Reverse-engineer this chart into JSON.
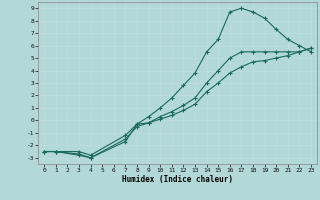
{
  "xlabel": "Humidex (Indice chaleur)",
  "bg_color": "#b2d8d8",
  "line_color": "#1a6b5a",
  "xlim": [
    -0.5,
    23.5
  ],
  "ylim": [
    -3.5,
    9.5
  ],
  "xticks": [
    0,
    1,
    2,
    3,
    4,
    5,
    6,
    7,
    8,
    9,
    10,
    11,
    12,
    13,
    14,
    15,
    16,
    17,
    18,
    19,
    20,
    21,
    22,
    23
  ],
  "yticks": [
    -3,
    -2,
    -1,
    0,
    1,
    2,
    3,
    4,
    5,
    6,
    7,
    8,
    9
  ],
  "series": [
    {
      "x": [
        0,
        1,
        3,
        4,
        7,
        8,
        9,
        10,
        11,
        12,
        13,
        14,
        15,
        16,
        17,
        18,
        19,
        20,
        21,
        22,
        23
      ],
      "y": [
        -2.5,
        -2.5,
        -2.8,
        -3.0,
        -1.7,
        -0.3,
        0.3,
        1.0,
        1.8,
        2.8,
        3.8,
        5.5,
        6.5,
        8.7,
        9.0,
        8.7,
        8.2,
        7.3,
        6.5,
        6.0,
        5.5
      ]
    },
    {
      "x": [
        0,
        1,
        3,
        4,
        7,
        8,
        9,
        10,
        11,
        12,
        13,
        14,
        15,
        16,
        17,
        18,
        19,
        20,
        21,
        22,
        23
      ],
      "y": [
        -2.5,
        -2.5,
        -2.7,
        -3.0,
        -1.5,
        -0.5,
        -0.2,
        0.3,
        0.7,
        1.2,
        1.8,
        3.0,
        4.0,
        5.0,
        5.5,
        5.5,
        5.5,
        5.5,
        5.5,
        5.5,
        5.8
      ]
    },
    {
      "x": [
        0,
        1,
        3,
        4,
        7,
        8,
        9,
        10,
        11,
        12,
        13,
        14,
        15,
        16,
        17,
        18,
        19,
        20,
        21,
        22,
        23
      ],
      "y": [
        -2.5,
        -2.5,
        -2.5,
        -2.8,
        -1.2,
        -0.3,
        -0.2,
        0.1,
        0.4,
        0.8,
        1.3,
        2.3,
        3.0,
        3.8,
        4.3,
        4.7,
        4.8,
        5.0,
        5.2,
        5.5,
        5.8
      ]
    }
  ]
}
